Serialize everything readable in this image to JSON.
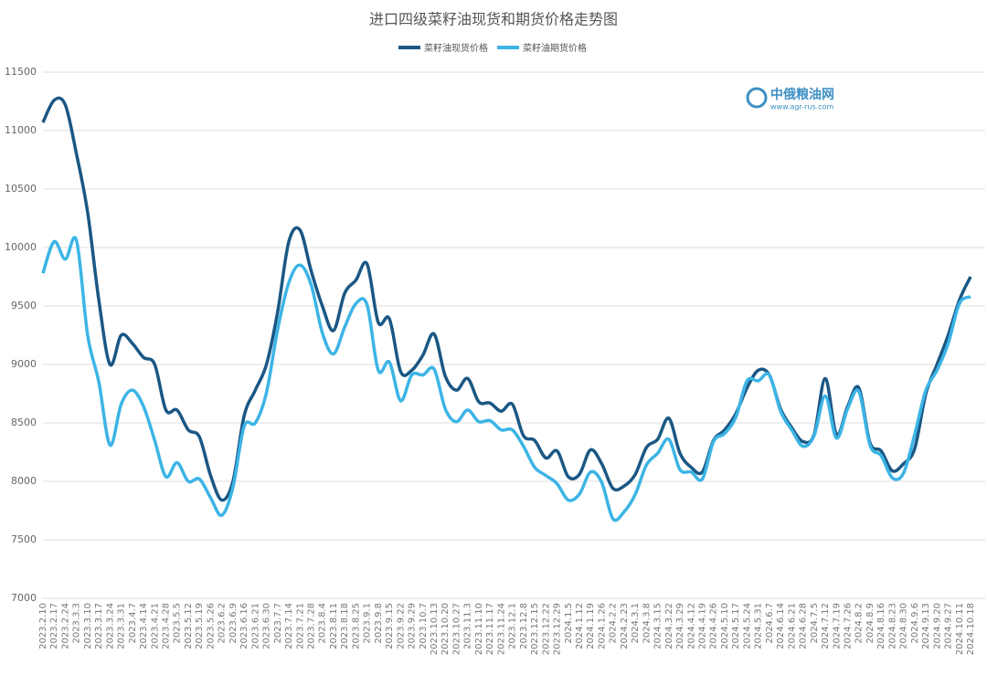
{
  "chart_data": {
    "type": "line",
    "title": "进口四级菜籽油现货和期货价格走势图",
    "watermark": {
      "name": "中俄粮油网",
      "url": "www.agr-rus.com"
    },
    "categories": [
      "2023.2.10",
      "2023.2.17",
      "2023.2.24",
      "2023.3.3",
      "2023.3.10",
      "2023.3.17",
      "2023.3.24",
      "2023.3.31",
      "2023.4.7",
      "2023.4.14",
      "2023.4.21",
      "2023.4.28",
      "2023.5.5",
      "2023.5.12",
      "2023.5.19",
      "2023.5.26",
      "2023.6.2",
      "2023.6.9",
      "2023.6.16",
      "2023.6.21",
      "2023.6.30",
      "2023.7.7",
      "2023.7.14",
      "2023.7.21",
      "2023.7.28",
      "2023.8.4",
      "2023.8.11",
      "2023.8.18",
      "2023.8.25",
      "2023.9.1",
      "2023.9.8",
      "2023.9.15",
      "2023.9.22",
      "2023.9.29",
      "2023.10.7",
      "2023.10.13",
      "2023.10.20",
      "2023.10.27",
      "2023.11.3",
      "2023.11.10",
      "2023.11.17",
      "2023.11.24",
      "2023.12.1",
      "2023.12.8",
      "2023.12.15",
      "2023.12.22",
      "2023.12.29",
      "2024.1.5",
      "2024.1.12",
      "2024.1.19",
      "2024.1.26",
      "2024.2.2",
      "2024.2.23",
      "2024.3.1",
      "2024.3.8",
      "2024.3.15",
      "2024.3.22",
      "2024.3.29",
      "2024.4.12",
      "2024.4.19",
      "2024.4.26",
      "2024.5.10",
      "2024.5.17",
      "2024.5.24",
      "2024.5.31",
      "2024.6.7",
      "2024.6.14",
      "2024.6.21",
      "2024.6.28",
      "2024.7.5",
      "2024.7.12",
      "2024.7.19",
      "2024.7.26",
      "2024.8.2",
      "2024.8.9",
      "2024.8.16",
      "2024.8.23",
      "2024.8.30",
      "2024.9.6",
      "2024.9.13",
      "2024.9.20",
      "2024.9.27",
      "2024.10.11",
      "2024.10.18"
    ],
    "series": [
      {
        "name": "菜籽油现货价格",
        "color": "#1a5784",
        "values": [
          11070,
          11260,
          11220,
          10800,
          10300,
          9550,
          9000,
          9250,
          9180,
          9060,
          9000,
          8610,
          8610,
          8440,
          8380,
          8050,
          7840,
          8000,
          8560,
          8780,
          9000,
          9450,
          10050,
          10150,
          9800,
          9500,
          9290,
          9610,
          9720,
          9860,
          9360,
          9390,
          8940,
          8950,
          9080,
          9260,
          8900,
          8780,
          8880,
          8680,
          8670,
          8600,
          8660,
          8390,
          8350,
          8200,
          8260,
          8040,
          8060,
          8270,
          8150,
          7940,
          7960,
          8060,
          8290,
          8360,
          8540,
          8240,
          8120,
          8080,
          8350,
          8440,
          8580,
          8800,
          8950,
          8910,
          8620,
          8460,
          8340,
          8400,
          8880,
          8400,
          8640,
          8800,
          8330,
          8260,
          8090,
          8150,
          8280,
          8750,
          9000,
          9250,
          9550,
          9750
        ]
      },
      {
        "name": "菜籽油期货价格",
        "color": "#3cb4e5",
        "values": [
          9780,
          10050,
          9900,
          10060,
          9250,
          8850,
          8310,
          8660,
          8780,
          8640,
          8350,
          8040,
          8160,
          8000,
          8020,
          7860,
          7710,
          7950,
          8470,
          8500,
          8760,
          9300,
          9700,
          9850,
          9680,
          9270,
          9090,
          9320,
          9520,
          9510,
          8950,
          9020,
          8690,
          8910,
          8910,
          8960,
          8620,
          8510,
          8610,
          8510,
          8520,
          8440,
          8440,
          8300,
          8120,
          8050,
          7980,
          7840,
          7890,
          8080,
          7990,
          7680,
          7740,
          7890,
          8140,
          8240,
          8360,
          8100,
          8080,
          8020,
          8340,
          8410,
          8550,
          8860,
          8860,
          8910,
          8600,
          8440,
          8300,
          8390,
          8730,
          8370,
          8620,
          8770,
          8310,
          8220,
          8030,
          8070,
          8400,
          8780,
          8950,
          9180,
          9520,
          9580
        ]
      }
    ],
    "ylim": [
      7000,
      11500
    ],
    "yticks": [
      7000,
      7500,
      8000,
      8500,
      9000,
      9500,
      10000,
      10500,
      11000,
      11500
    ],
    "grid": true,
    "legend": "top"
  }
}
